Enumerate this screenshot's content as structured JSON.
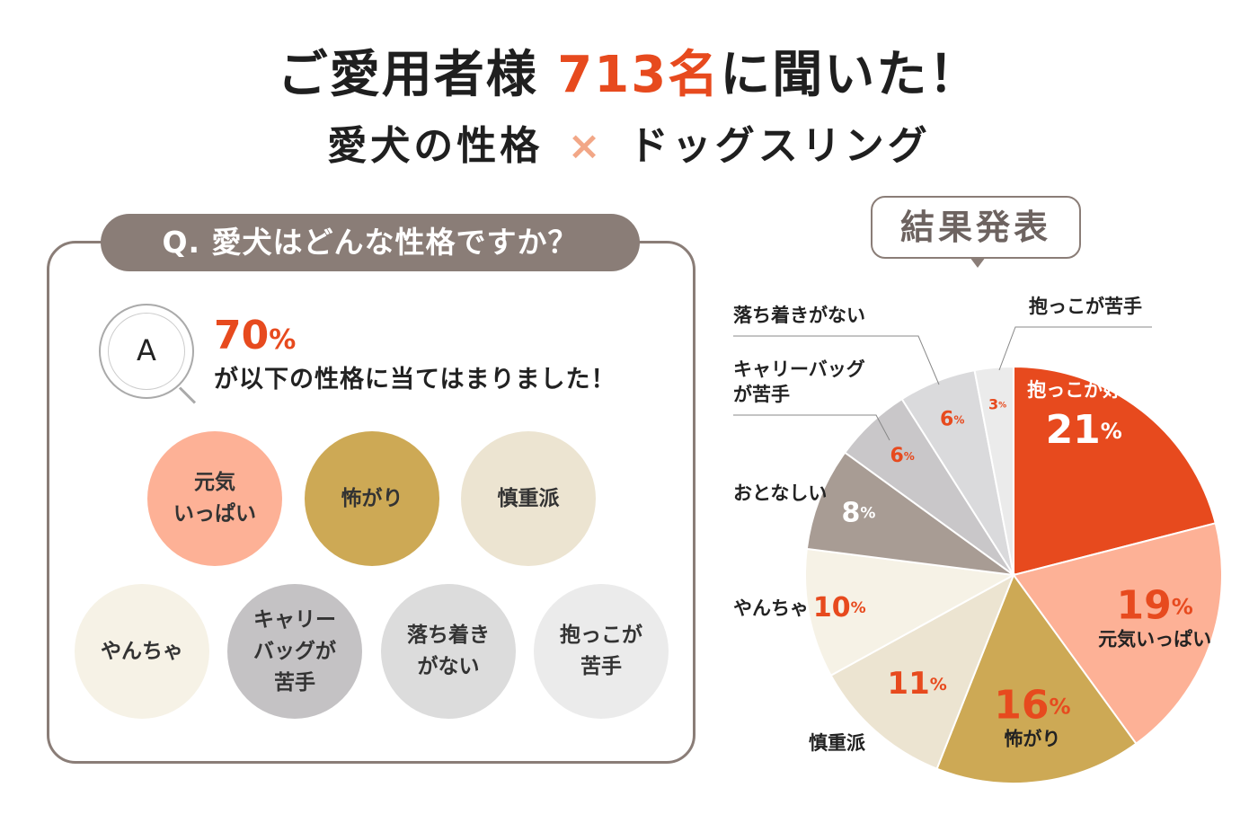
{
  "header": {
    "title_prefix": "ご愛用者様",
    "title_accent": "713名",
    "title_suffix": "に聞いた！",
    "subtitle_left": "愛犬の性格",
    "subtitle_times": "×",
    "subtitle_right": "ドッグスリング"
  },
  "question": {
    "label": "Q. 愛犬はどんな性格ですか？",
    "answer_icon": "A",
    "answer_percent": "70",
    "answer_percent_unit": "%",
    "answer_text": "が以下の性格に当てはまりました！"
  },
  "traits": [
    {
      "label": "元気\nいっぱい",
      "color": "#fdb196"
    },
    {
      "label": "怖がり",
      "color": "#cda955"
    },
    {
      "label": "慎重派",
      "color": "#ece4d1"
    },
    {
      "label": "やんちゃ",
      "color": "#f6f2e6"
    },
    {
      "label": "キャリー\nバッグが\n苦手",
      "color": "#c4c2c4"
    },
    {
      "label": "落ち着き\nがない",
      "color": "#dcdcdc"
    },
    {
      "label": "抱っこが\n苦手",
      "color": "#ebebeb"
    }
  ],
  "result_label": "結果発表",
  "chart_data": {
    "type": "pie",
    "start": "top",
    "direction": "clockwise",
    "slices": [
      {
        "label": "抱っこが好き",
        "value": 21,
        "color": "#e74a1e"
      },
      {
        "label": "元気いっぱい",
        "value": 19,
        "color": "#fdb196"
      },
      {
        "label": "怖がり",
        "value": 16,
        "color": "#cda955"
      },
      {
        "label": "慎重派",
        "value": 11,
        "color": "#ece4d1"
      },
      {
        "label": "やんちゃ",
        "value": 10,
        "color": "#f6f2e6"
      },
      {
        "label": "おとなしい",
        "value": 8,
        "color": "#a89c94"
      },
      {
        "label": "キャリーバッグが苦手",
        "value": 6,
        "color": "#c9c7c9"
      },
      {
        "label": "落ち着きがない",
        "value": 6,
        "color": "#dadadc"
      },
      {
        "label": "抱っこが苦手",
        "value": 3,
        "color": "#ebebeb"
      }
    ],
    "value_unit": "%"
  }
}
